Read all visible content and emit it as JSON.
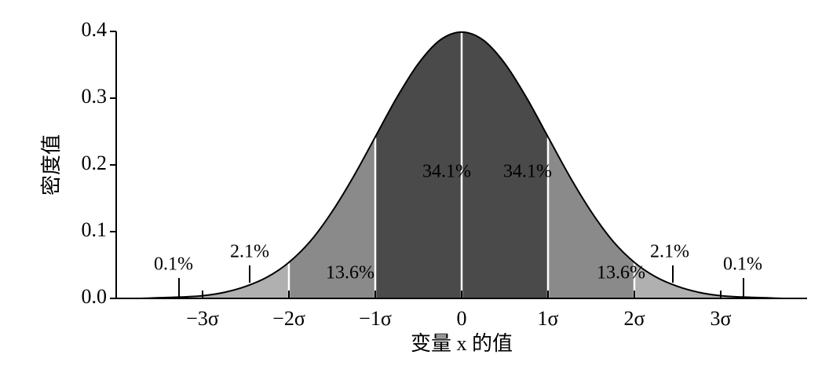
{
  "chart_data": {
    "type": "normal-regions",
    "xlabel": "变量 x 的值",
    "ylabel": "密度值",
    "x": [
      -4,
      -3.75,
      -3.5,
      -3.25,
      -3,
      -2.75,
      -2.5,
      -2.25,
      -2,
      -1.75,
      -1.5,
      -1.25,
      -1,
      -0.75,
      -0.5,
      -0.25,
      0,
      0.25,
      0.5,
      0.75,
      1,
      1.25,
      1.5,
      1.75,
      2,
      2.25,
      2.5,
      2.75,
      3,
      3.25,
      3.5,
      3.75,
      4
    ],
    "values": [
      0,
      0,
      0.001,
      0.002,
      0.004,
      0.009,
      0.018,
      0.032,
      0.054,
      0.086,
      0.13,
      0.183,
      0.242,
      0.301,
      0.352,
      0.387,
      0.399,
      0.387,
      0.352,
      0.301,
      0.242,
      0.183,
      0.13,
      0.086,
      0.054,
      0.032,
      0.018,
      0.009,
      0.004,
      0.002,
      0.001,
      0,
      0
    ],
    "regions": {
      "values": [
        0.1,
        2.1,
        13.6,
        34.1,
        34.1,
        13.6,
        2.1,
        0.1
      ],
      "value_labels": [
        "0.1%",
        "2.1%",
        "13.6%",
        "34.1%",
        "34.1%",
        "13.6%",
        "2.1%",
        "0.1%"
      ],
      "colors": [
        "#c8c8c8",
        "#b0b0b0",
        "#8a8a8a",
        "#4a4a4a",
        "#4a4a4a",
        "#8a8a8a",
        "#b0b0b0",
        "#c8c8c8"
      ]
    },
    "line_color": "#000000",
    "xlim": [
      -4,
      4
    ],
    "xticks": [
      {
        "value": -3,
        "label": "−3σ"
      },
      {
        "value": -2,
        "label": "−2σ"
      },
      {
        "value": -1,
        "label": "−1σ"
      },
      0,
      {
        "value": 1,
        "label": "1σ"
      },
      {
        "value": 2,
        "label": "2σ"
      },
      {
        "value": 3,
        "label": "3σ"
      }
    ],
    "ylim": [
      0,
      0.4
    ],
    "yticks": [
      {
        "value": 0,
        "label": "0.0"
      },
      0.1,
      0.2,
      0.3,
      0.4
    ]
  }
}
